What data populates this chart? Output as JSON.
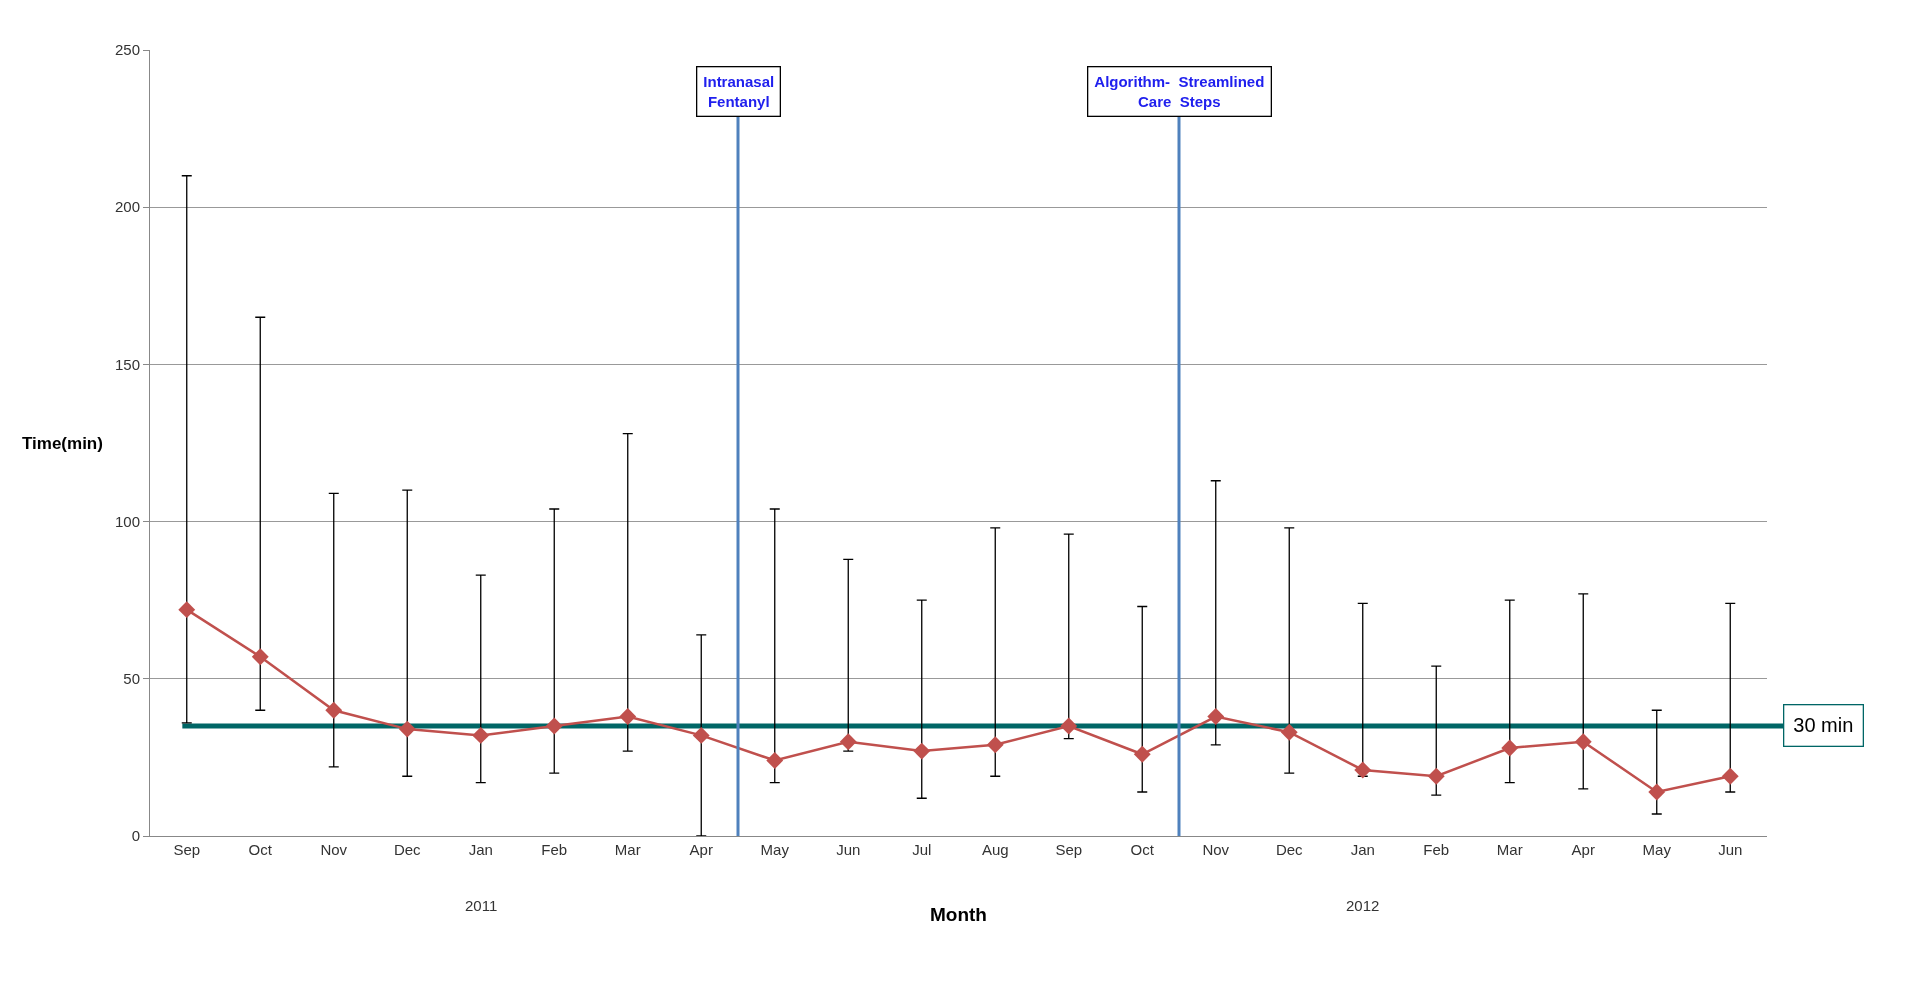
{
  "chart_data": {
    "type": "line",
    "xlabel": "Month",
    "ylabel": "Time(min)",
    "categories": [
      "Sep",
      "Oct",
      "Nov",
      "Dec",
      "Jan",
      "Feb",
      "Mar",
      "Apr",
      "May",
      "Jun",
      "Jul",
      "Aug",
      "Sep",
      "Oct",
      "Nov",
      "Dec",
      "Jan",
      "Feb",
      "Mar",
      "Apr",
      "May",
      "Jun"
    ],
    "annotations": [
      "Intranasal\nFentanyl",
      "Algorithm-  Streamlined\nCare  Steps",
      "2011",
      "2012"
    ],
    "ylim": [
      0,
      250
    ],
    "yticks": [
      0,
      50,
      100,
      150,
      200,
      250
    ],
    "grid": "y",
    "marker": "diamond",
    "line_style": "solid",
    "series": [
      {
        "color": "#c0504d",
        "values": [
          72,
          57,
          40,
          34,
          32,
          35,
          38,
          32,
          24,
          30,
          27,
          29,
          35,
          26,
          38,
          33,
          21,
          19,
          28,
          30,
          14,
          19
        ],
        "errors": [
          [
            36,
            210
          ],
          [
            40,
            165
          ],
          [
            22,
            109
          ],
          [
            19,
            110
          ],
          [
            17,
            83
          ],
          [
            20,
            104
          ],
          [
            27,
            128
          ],
          [
            0,
            64
          ],
          [
            17,
            104
          ],
          [
            27,
            88
          ],
          [
            12,
            75
          ],
          [
            19,
            98
          ],
          [
            31,
            96
          ],
          [
            14,
            73
          ],
          [
            29,
            113
          ],
          [
            20,
            98
          ],
          [
            19,
            74
          ],
          [
            13,
            54
          ],
          [
            17,
            75
          ],
          [
            15,
            77
          ],
          [
            7,
            40
          ],
          [
            14,
            74
          ]
        ]
      }
    ],
    "ref_lines": [
      {
        "axis": "y",
        "value": 35,
        "label": "30 min",
        "color": "#006666"
      }
    ]
  }
}
